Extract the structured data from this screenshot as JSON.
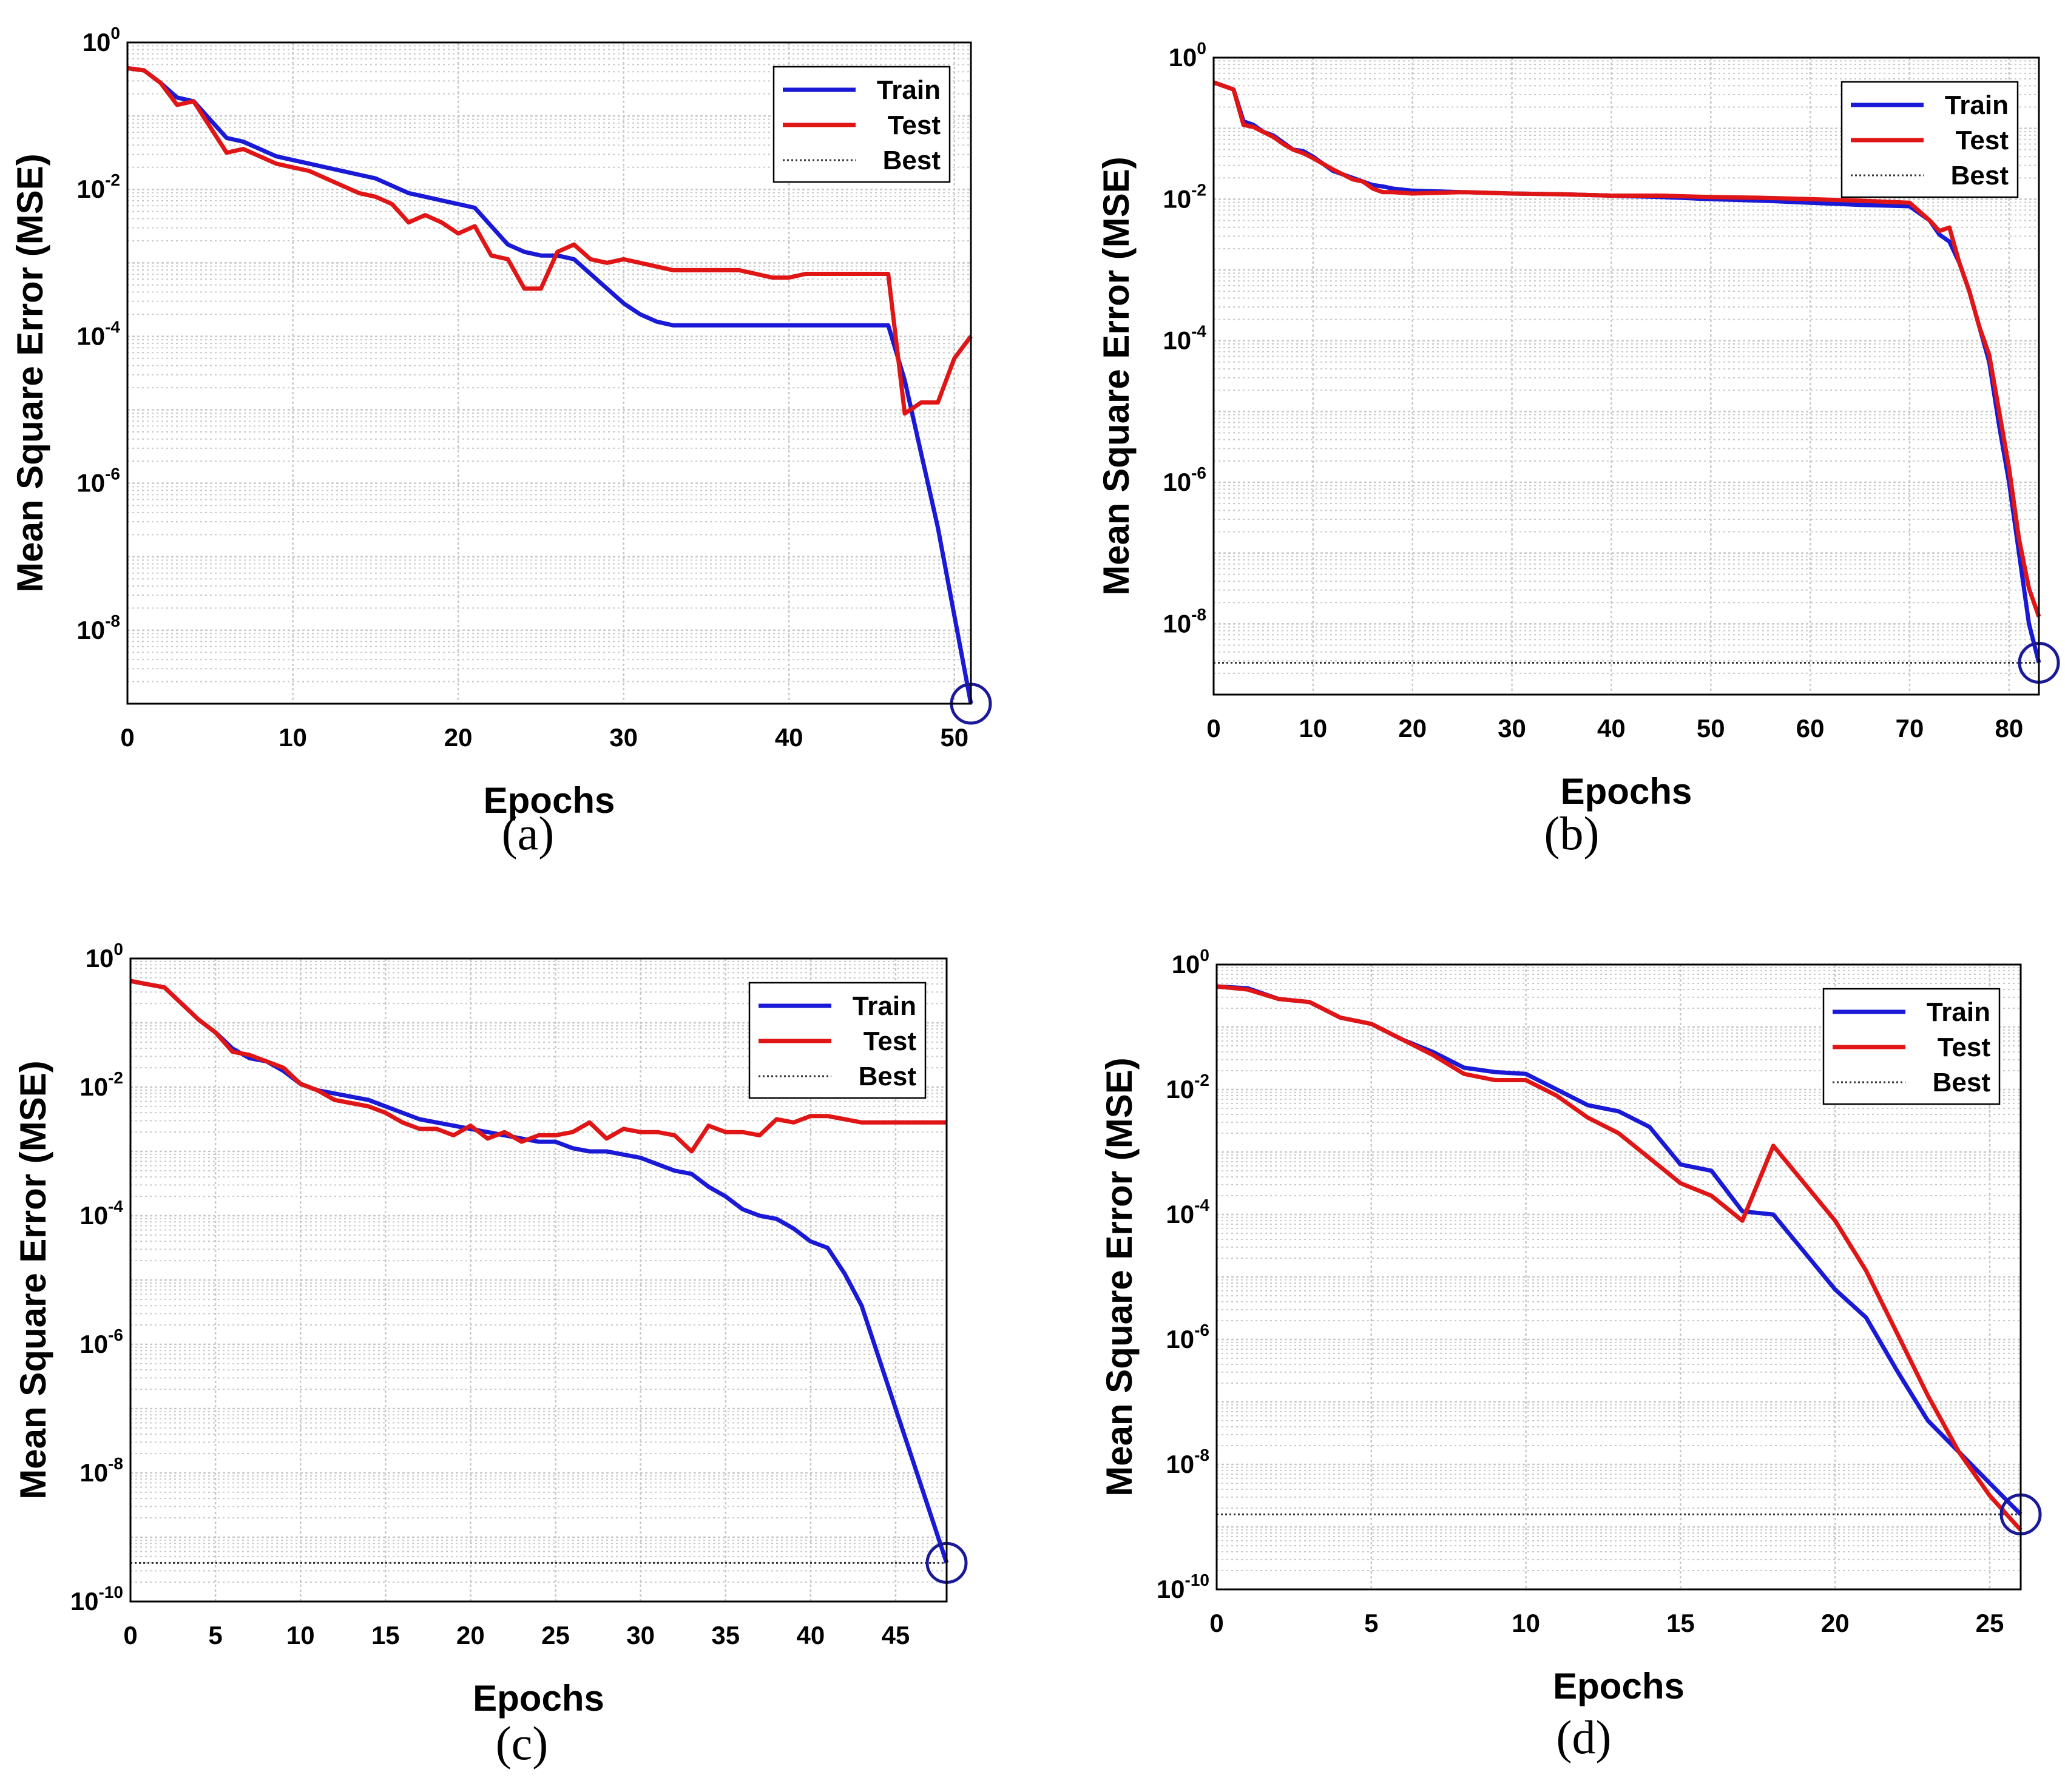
{
  "colors": {
    "train": "#1a1ad6",
    "test": "#e01515",
    "best": "#333333",
    "grid": "#c8c8c8",
    "marker": "#1a1a99"
  },
  "chart_data": [
    {
      "type": "line",
      "caption": "(a)",
      "xlabel": "Epochs",
      "ylabel": "Mean Square Error (MSE)",
      "xlim": [
        0,
        51
      ],
      "ylim_exp": [
        -9,
        0
      ],
      "xticks": [
        "0",
        "10",
        "20",
        "30",
        "40",
        "50"
      ],
      "xtick_values": [
        0,
        10,
        20,
        30,
        40,
        50
      ],
      "yticks_exp": [
        "0",
        "-2",
        "-4",
        "-6",
        "-8"
      ],
      "ytick_values": [
        0,
        -2,
        -4,
        -6,
        -8
      ],
      "legend": [
        "Train",
        "Test",
        "Best"
      ],
      "legend_position": "top-right",
      "best": {
        "epoch": 51,
        "log10_mse": -9
      },
      "series": [
        {
          "name": "Train",
          "x": [
            0,
            1,
            2,
            3,
            4,
            5,
            6,
            7,
            8,
            9,
            10,
            11,
            12,
            13,
            14,
            15,
            16,
            17,
            18,
            19,
            20,
            21,
            22,
            23,
            24,
            25,
            26,
            27,
            28,
            29,
            30,
            31,
            32,
            33,
            34,
            35,
            36,
            37,
            38,
            39,
            40,
            41,
            42,
            43,
            44,
            45,
            46,
            47,
            48,
            49,
            50,
            51
          ],
          "log10_y": [
            -0.35,
            -0.38,
            -0.55,
            -0.75,
            -0.8,
            -1.05,
            -1.3,
            -1.35,
            -1.45,
            -1.55,
            -1.6,
            -1.65,
            -1.7,
            -1.75,
            -1.8,
            -1.85,
            -1.95,
            -2.05,
            -2.1,
            -2.15,
            -2.2,
            -2.25,
            -2.5,
            -2.75,
            -2.85,
            -2.9,
            -2.9,
            -2.95,
            -3.15,
            -3.35,
            -3.55,
            -3.7,
            -3.8,
            -3.85,
            -3.85,
            -3.85,
            -3.85,
            -3.85,
            -3.85,
            -3.85,
            -3.85,
            -3.85,
            -3.85,
            -3.85,
            -3.85,
            -3.85,
            -3.85,
            -4.6,
            -5.6,
            -6.6,
            -7.8,
            -9.0
          ]
        },
        {
          "name": "Test",
          "x": [
            0,
            1,
            2,
            3,
            4,
            5,
            6,
            7,
            8,
            9,
            10,
            11,
            12,
            13,
            14,
            15,
            16,
            17,
            18,
            19,
            20,
            21,
            22,
            23,
            24,
            25,
            26,
            27,
            28,
            29,
            30,
            31,
            32,
            33,
            34,
            35,
            36,
            37,
            38,
            39,
            40,
            41,
            42,
            43,
            44,
            45,
            46,
            47,
            48,
            49,
            50,
            51
          ],
          "log10_y": [
            -0.35,
            -0.38,
            -0.55,
            -0.85,
            -0.8,
            -1.15,
            -1.5,
            -1.45,
            -1.55,
            -1.65,
            -1.7,
            -1.75,
            -1.85,
            -1.95,
            -2.05,
            -2.1,
            -2.2,
            -2.45,
            -2.35,
            -2.45,
            -2.6,
            -2.5,
            -2.9,
            -2.95,
            -3.35,
            -3.35,
            -2.85,
            -2.75,
            -2.95,
            -3.0,
            -2.95,
            -3.0,
            -3.05,
            -3.1,
            -3.1,
            -3.1,
            -3.1,
            -3.1,
            -3.15,
            -3.2,
            -3.2,
            -3.15,
            -3.15,
            -3.15,
            -3.15,
            -3.15,
            -3.15,
            -5.05,
            -4.9,
            -4.9,
            -4.3,
            -4.0
          ]
        },
        {
          "name": "Best",
          "x": [
            0,
            51
          ],
          "log10_y": [
            -9.0,
            -9.0
          ]
        }
      ]
    },
    {
      "type": "line",
      "caption": "(b)",
      "xlabel": "Epochs",
      "ylabel": "Mean Square Error (MSE)",
      "xlim": [
        0,
        83
      ],
      "ylim_exp": [
        -9,
        0
      ],
      "xticks": [
        "0",
        "10",
        "20",
        "30",
        "40",
        "50",
        "60",
        "70",
        "80"
      ],
      "xtick_values": [
        0,
        10,
        20,
        30,
        40,
        50,
        60,
        70,
        80
      ],
      "yticks_exp": [
        "0",
        "-2",
        "-4",
        "-6",
        "-8"
      ],
      "ytick_values": [
        0,
        -2,
        -4,
        -6,
        -8
      ],
      "legend": [
        "Train",
        "Test",
        "Best"
      ],
      "legend_position": "top-right",
      "best": {
        "epoch": 83,
        "log10_mse": -8.55
      },
      "series": [
        {
          "name": "Train",
          "x": [
            0,
            2,
            3,
            4,
            5,
            6,
            7,
            8,
            9,
            10,
            11,
            12,
            13,
            14,
            15,
            16,
            17,
            18,
            20,
            25,
            30,
            35,
            40,
            45,
            50,
            55,
            60,
            65,
            70,
            72,
            73,
            74,
            75,
            76,
            77,
            78,
            79,
            80,
            81,
            82,
            83
          ],
          "log10_y": [
            -0.35,
            -0.45,
            -0.9,
            -0.95,
            -1.05,
            -1.1,
            -1.2,
            -1.3,
            -1.32,
            -1.4,
            -1.5,
            -1.6,
            -1.65,
            -1.7,
            -1.75,
            -1.8,
            -1.82,
            -1.85,
            -1.88,
            -1.9,
            -1.92,
            -1.93,
            -1.95,
            -1.97,
            -2.0,
            -2.02,
            -2.05,
            -2.08,
            -2.1,
            -2.3,
            -2.5,
            -2.6,
            -2.9,
            -3.3,
            -3.8,
            -4.3,
            -5.2,
            -6.0,
            -7.0,
            -8.0,
            -8.55
          ]
        },
        {
          "name": "Test",
          "x": [
            0,
            2,
            3,
            4,
            5,
            6,
            7,
            8,
            9,
            10,
            11,
            12,
            13,
            14,
            15,
            16,
            17,
            18,
            20,
            25,
            30,
            35,
            40,
            45,
            50,
            55,
            60,
            65,
            70,
            72,
            73,
            74,
            75,
            76,
            77,
            78,
            79,
            80,
            81,
            82,
            83
          ],
          "log10_y": [
            -0.35,
            -0.45,
            -0.95,
            -0.98,
            -1.05,
            -1.12,
            -1.22,
            -1.3,
            -1.35,
            -1.42,
            -1.5,
            -1.58,
            -1.65,
            -1.72,
            -1.75,
            -1.85,
            -1.9,
            -1.9,
            -1.92,
            -1.9,
            -1.92,
            -1.93,
            -1.95,
            -1.95,
            -1.97,
            -1.98,
            -2.0,
            -2.02,
            -2.05,
            -2.3,
            -2.45,
            -2.4,
            -2.9,
            -3.3,
            -3.8,
            -4.2,
            -5.0,
            -5.8,
            -6.8,
            -7.5,
            -7.9
          ]
        },
        {
          "name": "Best",
          "x": [
            0,
            83
          ],
          "log10_y": [
            -8.55,
            -8.55
          ]
        }
      ]
    },
    {
      "type": "line",
      "caption": "(c)",
      "xlabel": "Epochs",
      "ylabel": "Mean Square Error (MSE)",
      "xlim": [
        0,
        48
      ],
      "ylim_exp": [
        -10,
        0
      ],
      "xticks": [
        "0",
        "5",
        "10",
        "15",
        "20",
        "25",
        "30",
        "35",
        "40",
        "45"
      ],
      "xtick_values": [
        0,
        5,
        10,
        15,
        20,
        25,
        30,
        35,
        40,
        45
      ],
      "yticks_exp": [
        "0",
        "-2",
        "-4",
        "-6",
        "-8",
        "-10"
      ],
      "ytick_values": [
        0,
        -2,
        -4,
        -6,
        -8,
        -10
      ],
      "legend": [
        "Train",
        "Test",
        "Best"
      ],
      "legend_position": "top-right",
      "best": {
        "epoch": 48,
        "log10_mse": -9.4
      },
      "series": [
        {
          "name": "Train",
          "x": [
            0,
            1,
            2,
            3,
            4,
            5,
            6,
            7,
            8,
            9,
            10,
            11,
            12,
            13,
            14,
            15,
            16,
            17,
            18,
            19,
            20,
            21,
            22,
            23,
            24,
            25,
            26,
            27,
            28,
            29,
            30,
            31,
            32,
            33,
            34,
            35,
            36,
            37,
            38,
            39,
            40,
            41,
            42,
            43,
            44,
            45,
            46,
            47,
            48
          ],
          "log10_y": [
            -0.35,
            -0.4,
            -0.45,
            -0.7,
            -0.95,
            -1.15,
            -1.4,
            -1.55,
            -1.6,
            -1.75,
            -1.95,
            -2.05,
            -2.1,
            -2.15,
            -2.2,
            -2.3,
            -2.4,
            -2.5,
            -2.55,
            -2.6,
            -2.65,
            -2.7,
            -2.75,
            -2.8,
            -2.85,
            -2.85,
            -2.95,
            -3.0,
            -3.0,
            -3.05,
            -3.1,
            -3.2,
            -3.3,
            -3.35,
            -3.55,
            -3.7,
            -3.9,
            -4.0,
            -4.05,
            -4.2,
            -4.4,
            -4.5,
            -4.9,
            -5.4,
            -6.2,
            -7.0,
            -7.8,
            -8.6,
            -9.4
          ]
        },
        {
          "name": "Test",
          "x": [
            0,
            1,
            2,
            3,
            4,
            5,
            6,
            7,
            8,
            9,
            10,
            11,
            12,
            13,
            14,
            15,
            16,
            17,
            18,
            19,
            20,
            21,
            22,
            23,
            24,
            25,
            26,
            27,
            28,
            29,
            30,
            31,
            32,
            33,
            34,
            35,
            36,
            37,
            38,
            39,
            40,
            41,
            42,
            43,
            44,
            45,
            46,
            47,
            48
          ],
          "log10_y": [
            -0.35,
            -0.4,
            -0.45,
            -0.7,
            -0.95,
            -1.15,
            -1.45,
            -1.5,
            -1.6,
            -1.7,
            -1.95,
            -2.05,
            -2.2,
            -2.25,
            -2.3,
            -2.4,
            -2.55,
            -2.65,
            -2.65,
            -2.75,
            -2.6,
            -2.8,
            -2.7,
            -2.85,
            -2.75,
            -2.75,
            -2.7,
            -2.55,
            -2.8,
            -2.65,
            -2.7,
            -2.7,
            -2.75,
            -3.0,
            -2.6,
            -2.7,
            -2.7,
            -2.75,
            -2.5,
            -2.55,
            -2.45,
            -2.45,
            -2.5,
            -2.55,
            -2.55,
            -2.55,
            -2.55,
            -2.55,
            -2.55
          ]
        },
        {
          "name": "Best",
          "x": [
            0,
            48
          ],
          "log10_y": [
            -9.4,
            -9.4
          ]
        }
      ]
    },
    {
      "type": "line",
      "caption": "(d)",
      "xlabel": "Epochs",
      "ylabel": "Mean Square Error (MSE)",
      "xlim": [
        0,
        26
      ],
      "ylim_exp": [
        -10,
        0
      ],
      "xticks": [
        "0",
        "5",
        "10",
        "15",
        "20",
        "25"
      ],
      "xtick_values": [
        0,
        5,
        10,
        15,
        20,
        25
      ],
      "yticks_exp": [
        "0",
        "-2",
        "-4",
        "-6",
        "-8",
        "-10"
      ],
      "ytick_values": [
        0,
        -2,
        -4,
        -6,
        -8,
        -10
      ],
      "legend": [
        "Train",
        "Test",
        "Best"
      ],
      "legend_position": "top-right",
      "best": {
        "epoch": 26,
        "log10_mse": -8.8
      },
      "series": [
        {
          "name": "Train",
          "x": [
            0,
            1,
            2,
            3,
            4,
            5,
            6,
            7,
            8,
            9,
            10,
            11,
            12,
            13,
            14,
            15,
            16,
            17,
            18,
            19,
            20,
            21,
            22,
            23,
            24,
            25,
            26
          ],
          "log10_y": [
            -0.35,
            -0.38,
            -0.55,
            -0.6,
            -0.85,
            -0.95,
            -1.2,
            -1.4,
            -1.65,
            -1.72,
            -1.75,
            -2.0,
            -2.25,
            -2.35,
            -2.6,
            -3.2,
            -3.3,
            -3.95,
            -4.0,
            -4.6,
            -5.2,
            -5.65,
            -6.5,
            -7.3,
            -7.8,
            -8.3,
            -8.8
          ]
        },
        {
          "name": "Test",
          "x": [
            0,
            1,
            2,
            3,
            4,
            5,
            6,
            7,
            8,
            9,
            10,
            11,
            12,
            13,
            14,
            15,
            16,
            17,
            18,
            19,
            20,
            21,
            22,
            23,
            24,
            25,
            26
          ],
          "log10_y": [
            -0.35,
            -0.4,
            -0.55,
            -0.6,
            -0.85,
            -0.95,
            -1.2,
            -1.45,
            -1.75,
            -1.85,
            -1.85,
            -2.1,
            -2.45,
            -2.7,
            -3.1,
            -3.5,
            -3.7,
            -4.1,
            -2.9,
            -3.5,
            -4.1,
            -4.9,
            -5.9,
            -6.9,
            -7.8,
            -8.5,
            -9.05
          ]
        },
        {
          "name": "Best",
          "x": [
            0,
            26
          ],
          "log10_y": [
            -8.8,
            -8.8
          ]
        }
      ]
    }
  ]
}
